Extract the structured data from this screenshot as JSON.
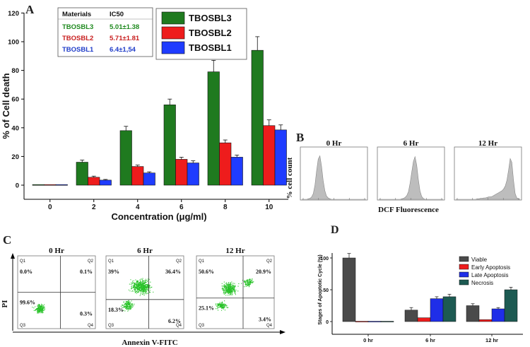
{
  "colors": {
    "green": "#1f7a1f",
    "red": "#ee1c1c",
    "blue": "#1f3cff",
    "viable": "#4a4a4a",
    "early": "#ee1c1c",
    "late": "#1f2ee8",
    "necrosis": "#1d5a52",
    "scatter": "#27c227",
    "hist": "#bdbdbd"
  },
  "chart_data": [
    {
      "id": "A",
      "type": "bar",
      "panel_label": "A",
      "xlabel": "Concentration (μg/ml)",
      "ylabel": "% of Cell death",
      "ylim": [
        -10,
        120
      ],
      "yticks": [
        0,
        20,
        40,
        60,
        80,
        100,
        120
      ],
      "categories": [
        "0",
        "2",
        "4",
        "6",
        "8",
        "10"
      ],
      "series": [
        {
          "name": "TBOSBL3",
          "values": [
            0,
            16,
            38,
            56,
            79,
            94
          ],
          "errors": [
            0,
            1.5,
            3,
            4,
            8,
            9.5
          ]
        },
        {
          "name": "TBOSBL2",
          "values": [
            0,
            5.5,
            13,
            18,
            29.5,
            41.5
          ],
          "errors": [
            0,
            0.8,
            1,
            1.5,
            2,
            4
          ]
        },
        {
          "name": "TBOSBL1",
          "values": [
            0,
            3.5,
            8.5,
            15.5,
            19.5,
            38.5
          ],
          "errors": [
            0,
            0.5,
            0.8,
            1.5,
            1.5,
            3.5
          ]
        }
      ],
      "legend": [
        "TBOSBL3",
        "TBOSBL2",
        "TBOSBL1"
      ],
      "ic50_table": {
        "headers": [
          "Materials",
          "IC50"
        ],
        "rows": [
          {
            "material": "TBOSBL3",
            "ic50": "5.01±1.38"
          },
          {
            "material": "TBOSBL2",
            "ic50": "5.71±1.81"
          },
          {
            "material": "TBOSBL1",
            "ic50": "6.4±1,54"
          }
        ]
      }
    },
    {
      "id": "B",
      "type": "area",
      "panel_label": "B",
      "xlabel": "DCF Fluorescence",
      "ylabel": "% cell count",
      "panels": [
        {
          "title": "0 Hr",
          "profile": [
            0,
            0,
            0,
            0,
            1,
            2,
            5,
            12,
            30,
            60,
            85,
            92,
            70,
            40,
            18,
            7,
            3,
            1,
            0,
            0,
            0,
            0,
            0,
            0,
            0,
            0,
            0,
            0,
            0,
            0,
            0,
            0,
            0,
            0,
            0,
            0,
            0,
            0,
            0,
            0
          ]
        },
        {
          "title": "6 Hr",
          "profile": [
            0,
            0,
            0,
            0,
            0,
            0,
            0,
            0,
            0,
            0,
            0,
            0,
            0,
            0,
            1,
            2,
            4,
            8,
            16,
            34,
            58,
            80,
            90,
            72,
            42,
            18,
            6,
            2,
            0,
            0,
            0,
            0,
            0,
            0,
            0,
            0,
            0,
            0,
            0,
            0
          ]
        },
        {
          "title": "12 Hr",
          "profile": [
            0,
            0,
            0,
            0,
            0,
            0,
            0,
            0,
            0,
            0,
            0,
            0,
            0,
            1,
            1,
            2,
            2,
            3,
            3,
            4,
            5,
            5,
            6,
            8,
            10,
            12,
            14,
            16,
            18,
            22,
            28,
            40,
            62,
            86,
            78,
            40,
            12,
            3,
            1,
            0
          ]
        }
      ]
    },
    {
      "id": "C",
      "type": "scatter",
      "panel_label": "C",
      "xlabel": "Annexin V-FITC",
      "ylabel": "PI",
      "quadrant_labels": [
        "Q1",
        "Q2",
        "Q3",
        "Q4"
      ],
      "panels": [
        {
          "title": "0 Hr",
          "q1": "0.0%",
          "q2": "0.1%",
          "q3": "99.6%",
          "q4": "0.3%"
        },
        {
          "title": "6 Hr",
          "q1": "39%",
          "q2": "36.4%",
          "q3": "18.3%",
          "q4": "6.2%"
        },
        {
          "title": "12 Hr",
          "q1": "50.6%",
          "q2": "20.9%",
          "q3": "25.1%",
          "q4": "3.4%"
        }
      ]
    },
    {
      "id": "D",
      "type": "bar",
      "panel_label": "D",
      "ylabel": "Stages of Apoptotic Cycle (%)",
      "xlabel": "",
      "ylim": [
        -25,
        120
      ],
      "yticks": [
        0,
        50,
        100
      ],
      "categories": [
        "0 hr",
        "6 hr",
        "12 hr"
      ],
      "series": [
        {
          "name": "Viable",
          "values": [
            100,
            18,
            25
          ],
          "errors": [
            7,
            4,
            3
          ]
        },
        {
          "name": "Early Apoptosis",
          "values": [
            0,
            6,
            3
          ],
          "errors": [
            0,
            0,
            0
          ]
        },
        {
          "name": "Late Apoptosis",
          "values": [
            0,
            36,
            20
          ],
          "errors": [
            0,
            3,
            2
          ]
        },
        {
          "name": "Necrosis",
          "values": [
            0,
            39,
            50
          ],
          "errors": [
            0,
            4,
            4
          ]
        }
      ],
      "legend": [
        "Viable",
        "Early Apoptosis",
        "Late Apoptosis",
        "Necrosis"
      ]
    }
  ]
}
